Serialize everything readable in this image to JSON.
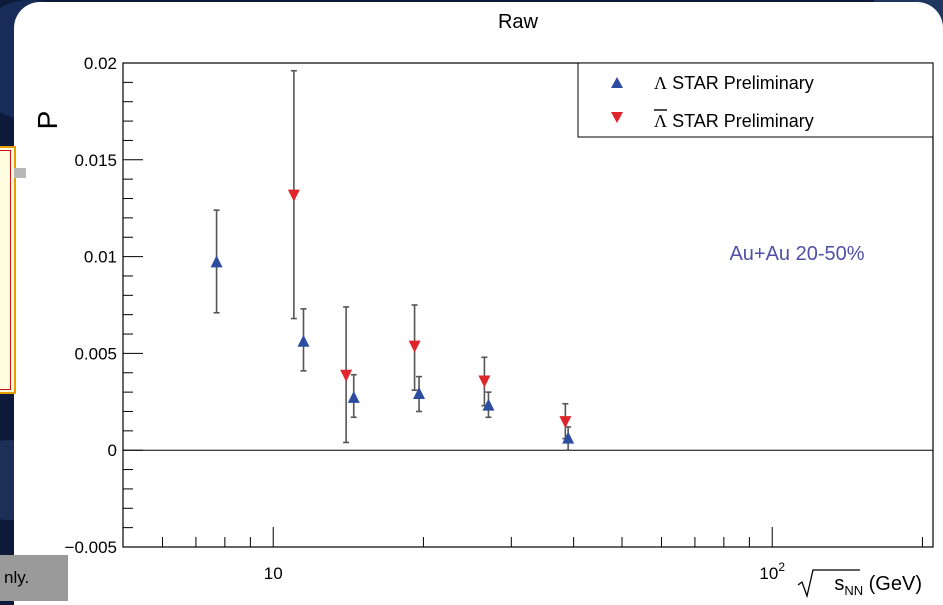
{
  "colors": {
    "lambda": "#2d4ea0",
    "antilambda": "#e0242b",
    "annotation": "#5050a8",
    "errorbar": "#555555"
  },
  "caption": "nly.",
  "chart_data": {
    "type": "scatter",
    "title": "Raw",
    "ylabel": "P",
    "xlabel_root": "s",
    "xlabel_sub": "NN",
    "xlabel_unit": " (GeV)",
    "xscale": "log",
    "xlim": [
      5.0,
      210.0
    ],
    "ylim": [
      -0.005,
      0.02
    ],
    "x_ticks": [
      {
        "value": 10,
        "base": "10",
        "exp": ""
      },
      {
        "value": 100,
        "base": "10",
        "exp": "2"
      }
    ],
    "y_ticks": [
      {
        "value": 0.02,
        "label": "0.02"
      },
      {
        "value": 0.015,
        "label": "0.015"
      },
      {
        "value": 0.01,
        "label": "0.01"
      },
      {
        "value": 0.005,
        "label": "0.005"
      },
      {
        "value": 0,
        "label": "0"
      },
      {
        "value": -0.005,
        "label": "−0.005"
      }
    ],
    "annotation": "Au+Au 20-50%",
    "legend_position": "top-right",
    "series": [
      {
        "name": "STAR Preliminary",
        "symbol": "Λ",
        "marker": "triangle-up",
        "points": [
          {
            "x": 7.7,
            "y": 0.0097,
            "ylo": 0.0071,
            "yhi": 0.0124
          },
          {
            "x": 11.5,
            "y": 0.0056,
            "ylo": 0.0041,
            "yhi": 0.0073
          },
          {
            "x": 14.5,
            "y": 0.0027,
            "ylo": 0.0017,
            "yhi": 0.0039
          },
          {
            "x": 19.6,
            "y": 0.0029,
            "ylo": 0.002,
            "yhi": 0.0038
          },
          {
            "x": 27.0,
            "y": 0.0023,
            "ylo": 0.0017,
            "yhi": 0.003
          },
          {
            "x": 39.0,
            "y": 0.0006,
            "ylo": 0.0,
            "yhi": 0.0012
          }
        ]
      },
      {
        "name": "STAR Preliminary",
        "symbol": "Λ",
        "overline": true,
        "marker": "triangle-down",
        "points": [
          {
            "x": 11.0,
            "y": 0.0132,
            "ylo": 0.0068,
            "yhi": 0.0196
          },
          {
            "x": 14.0,
            "y": 0.0039,
            "ylo": 0.0004,
            "yhi": 0.0074
          },
          {
            "x": 19.2,
            "y": 0.0054,
            "ylo": 0.0031,
            "yhi": 0.0075
          },
          {
            "x": 26.5,
            "y": 0.0036,
            "ylo": 0.0023,
            "yhi": 0.0048
          },
          {
            "x": 38.5,
            "y": 0.0015,
            "ylo": 0.0006,
            "yhi": 0.0024
          }
        ]
      }
    ]
  }
}
